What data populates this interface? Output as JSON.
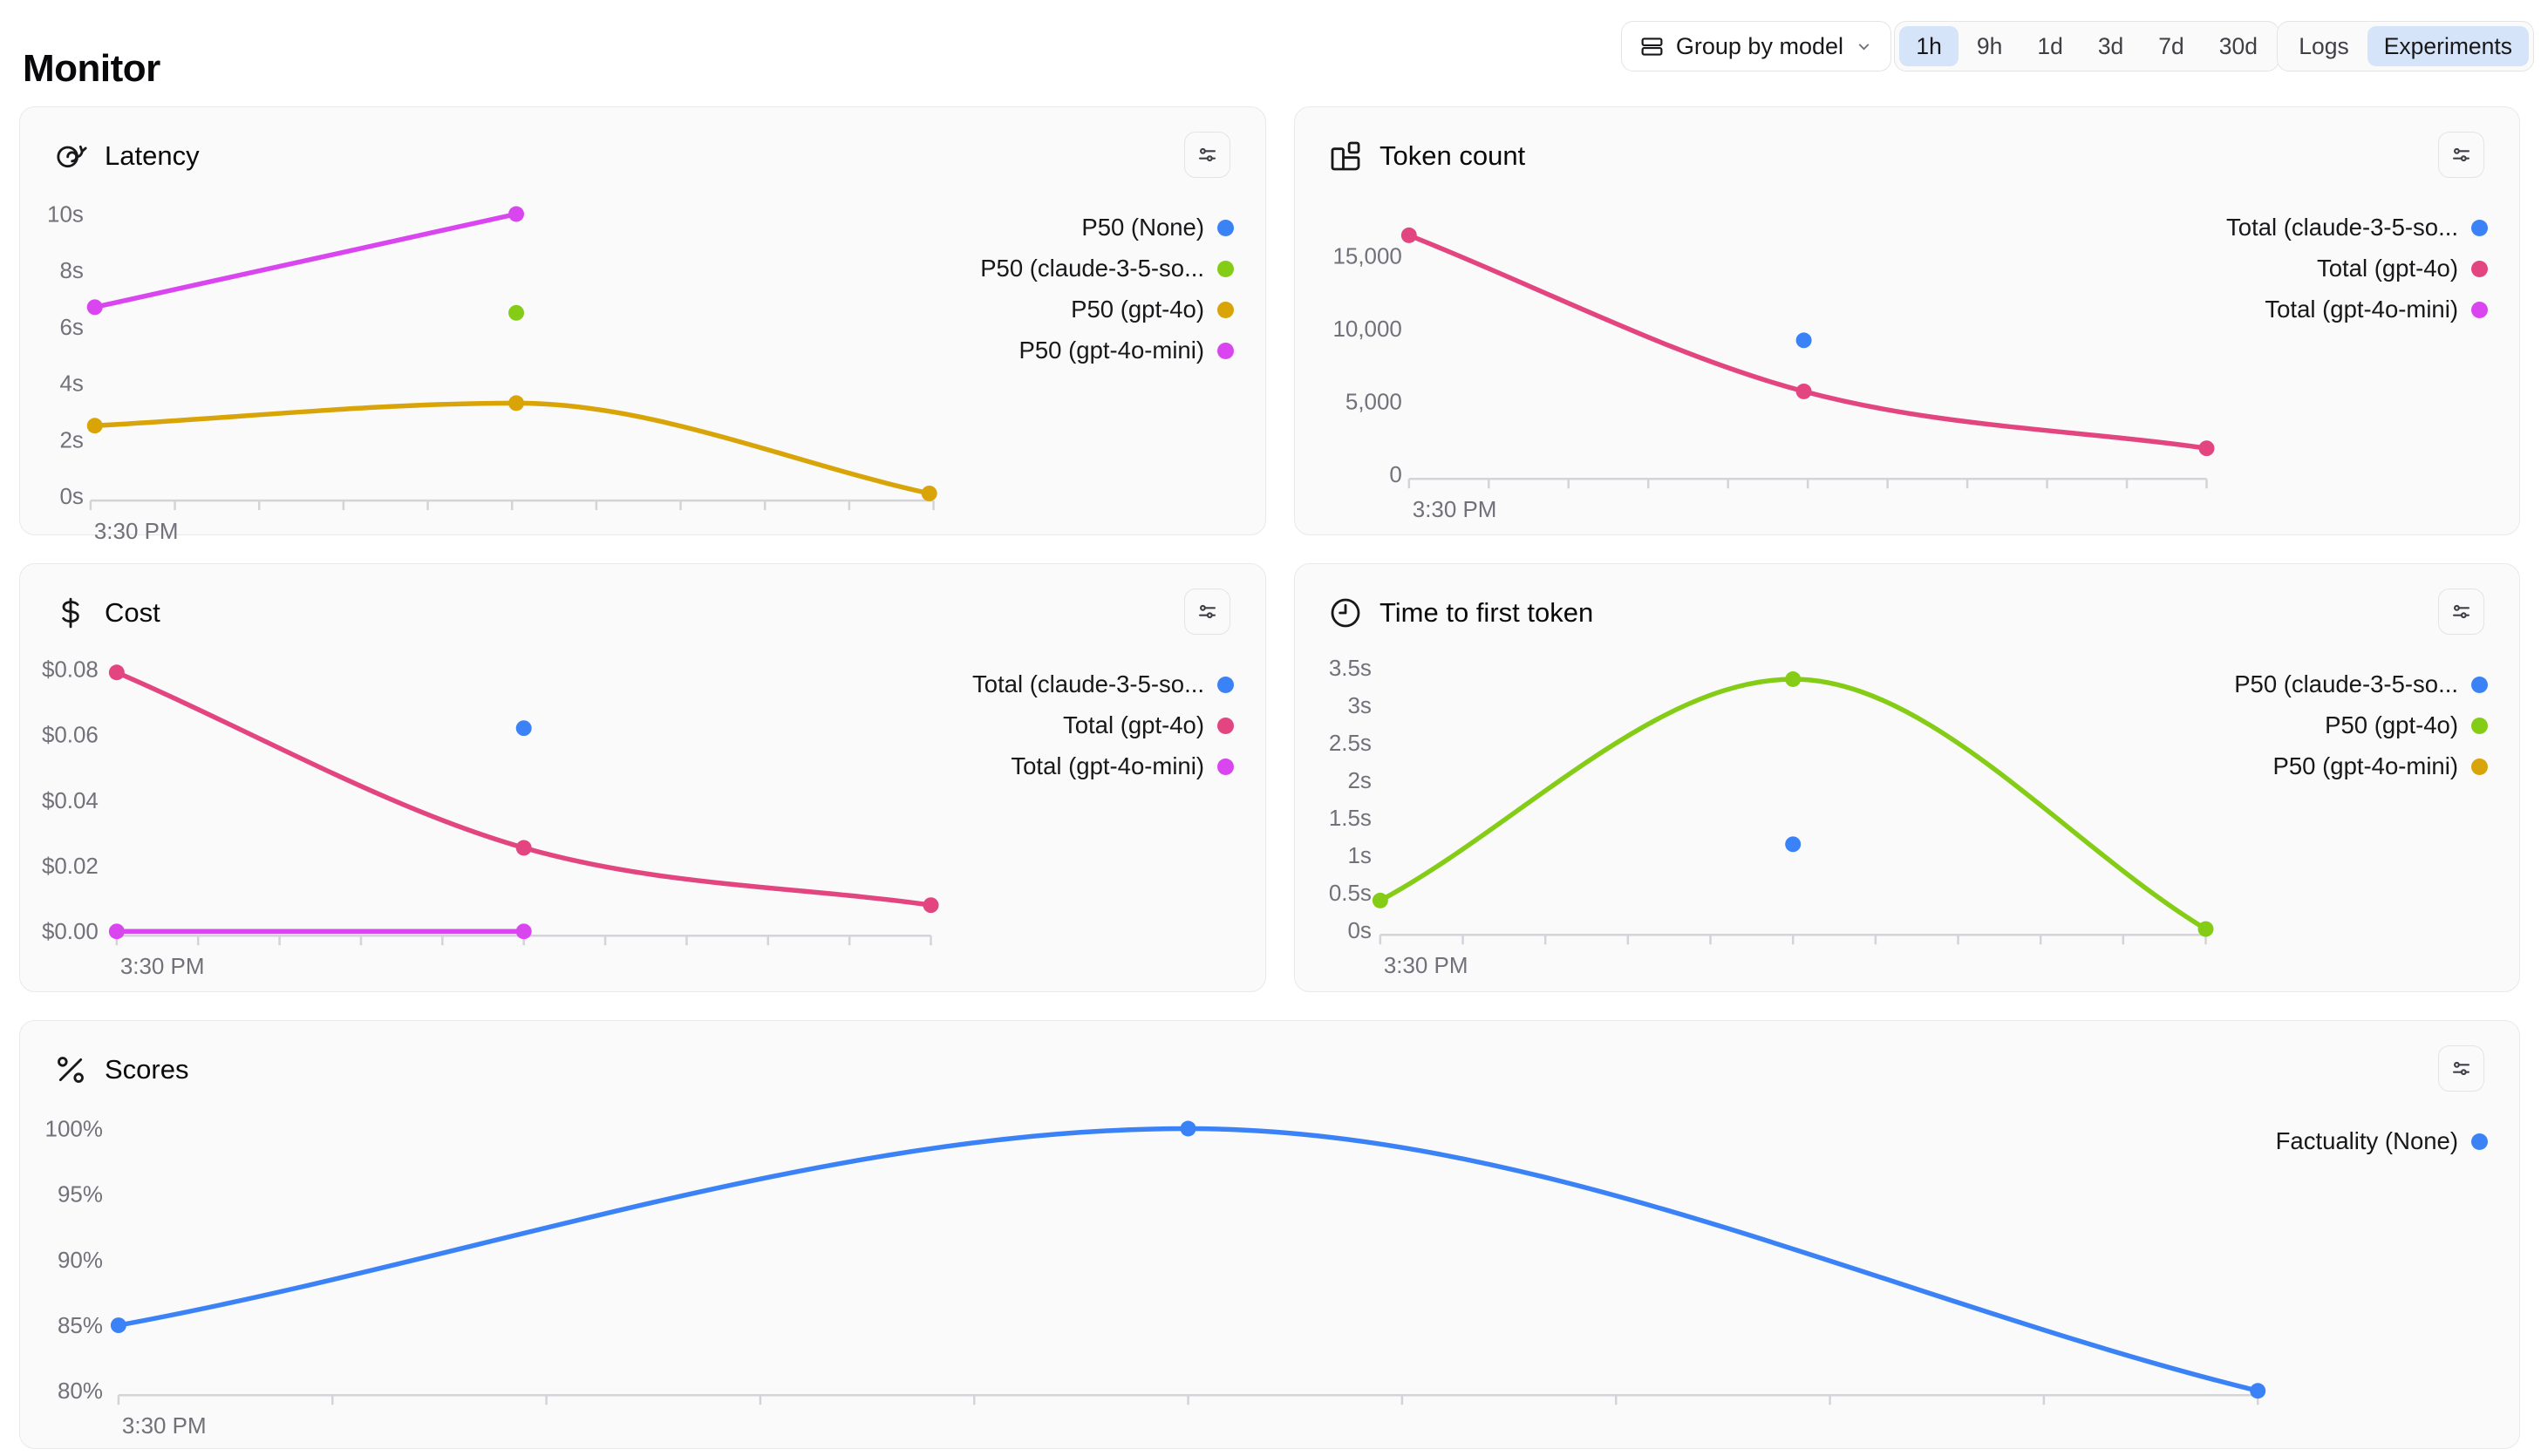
{
  "page": {
    "title": "Monitor"
  },
  "header": {
    "group_by_button": {
      "label": "Group by model",
      "icon": "rows-icon",
      "chevron": "chevron-down-icon"
    },
    "time_range_options": [
      "1h",
      "9h",
      "1d",
      "3d",
      "7d",
      "30d"
    ],
    "time_range_selected": "1h",
    "view_toggle_options": [
      "Logs",
      "Experiments"
    ],
    "view_toggle_selected": "Experiments",
    "selected_segment_bg": "#d6e4fa"
  },
  "colors": {
    "blue": "#3b82f6",
    "green": "#84cc16",
    "gold": "#d9a408",
    "magenta": "#d946ef",
    "pink": "#e2457f",
    "card_bg": "#fafafa",
    "card_border": "#e9e9ec",
    "axis": "#d4d4d8",
    "axis_label": "#71717a"
  },
  "chart_data": [
    {
      "id": "latency",
      "title": "Latency",
      "icon": "snail-icon",
      "type": "line",
      "settings_icon": "sliders-icon",
      "x_axis": {
        "start_label": "3:30 PM"
      },
      "y_axis": {
        "tick_labels": [
          "0s",
          "2s",
          "4s",
          "6s",
          "8s",
          "10s"
        ],
        "tick_values": [
          0,
          2,
          4,
          6,
          8,
          10
        ],
        "min": 0
      },
      "series": [
        {
          "name": "P50 (None)",
          "color": "#3b82f6",
          "points": []
        },
        {
          "name": "P50 (claude-3-5-so...",
          "color": "#84cc16",
          "points": [
            [
              0.505,
              6.5
            ]
          ]
        },
        {
          "name": "P50 (gpt-4o)",
          "color": "#d9a408",
          "points": [
            [
              0.005,
              2.5
            ],
            [
              0.505,
              3.3
            ],
            [
              0.995,
              0.1
            ]
          ]
        },
        {
          "name": "P50 (gpt-4o-mini)",
          "color": "#d946ef",
          "points": [
            [
              0.005,
              6.7
            ],
            [
              0.505,
              10
            ]
          ]
        }
      ]
    },
    {
      "id": "token_count",
      "title": "Token count",
      "icon": "blocks-icon",
      "type": "line",
      "settings_icon": "sliders-icon",
      "x_axis": {
        "start_label": "3:30 PM"
      },
      "y_axis": {
        "tick_labels": [
          "0",
          "5,000",
          "10,000",
          "15,000"
        ],
        "tick_values": [
          0,
          5000,
          10000,
          15000
        ],
        "min": 0
      },
      "series": [
        {
          "name": "Total (claude-3-5-so...",
          "color": "#3b82f6",
          "points": [
            [
              0.495,
              9200
            ]
          ]
        },
        {
          "name": "Total (gpt-4o)",
          "color": "#e2457f",
          "points": [
            [
              0,
              16400
            ],
            [
              0.495,
              5700
            ],
            [
              1,
              1800
            ]
          ]
        },
        {
          "name": "Total (gpt-4o-mini)",
          "color": "#d946ef",
          "points": []
        }
      ]
    },
    {
      "id": "cost",
      "title": "Cost",
      "icon": "dollar-icon",
      "type": "line",
      "settings_icon": "sliders-icon",
      "x_axis": {
        "start_label": "3:30 PM"
      },
      "y_axis": {
        "tick_labels": [
          "$0.00",
          "$0.02",
          "$0.04",
          "$0.06",
          "$0.08"
        ],
        "tick_values": [
          0,
          0.02,
          0.04,
          0.06,
          0.08
        ],
        "min": 0
      },
      "series": [
        {
          "name": "Total (claude-3-5-so...",
          "color": "#3b82f6",
          "points": [
            [
              0.5,
              0.062
            ]
          ]
        },
        {
          "name": "Total (gpt-4o)",
          "color": "#e2457f",
          "points": [
            [
              0,
              0.079
            ],
            [
              0.5,
              0.0255
            ],
            [
              1,
              0.008
            ]
          ]
        },
        {
          "name": "Total (gpt-4o-mini)",
          "color": "#d946ef",
          "points": [
            [
              0,
              0
            ],
            [
              0.5,
              0
            ]
          ]
        }
      ]
    },
    {
      "id": "time_to_first_token",
      "title": "Time to first token",
      "icon": "clock-icon",
      "type": "line",
      "settings_icon": "sliders-icon",
      "x_axis": {
        "start_label": "3:30 PM"
      },
      "y_axis": {
        "tick_labels": [
          "0s",
          "0.5s",
          "1s",
          "1.5s",
          "2s",
          "2.5s",
          "3s",
          "3.5s"
        ],
        "tick_values": [
          0,
          0.5,
          1,
          1.5,
          2,
          2.5,
          3,
          3.5
        ],
        "min": 0
      },
      "series": [
        {
          "name": "P50 (claude-3-5-so...",
          "color": "#3b82f6",
          "points": [
            [
              0.5,
              1.15
            ]
          ]
        },
        {
          "name": "P50 (gpt-4o)",
          "color": "#84cc16",
          "points": [
            [
              0,
              0.4
            ],
            [
              0.5,
              3.35
            ],
            [
              1,
              0.02
            ]
          ]
        },
        {
          "name": "P50 (gpt-4o-mini)",
          "color": "#d9a408",
          "points": []
        }
      ]
    },
    {
      "id": "scores",
      "title": "Scores",
      "icon": "percent-icon",
      "type": "line",
      "settings_icon": "sliders-icon",
      "x_axis": {
        "start_label": "3:30 PM"
      },
      "y_axis": {
        "tick_labels": [
          "80%",
          "85%",
          "90%",
          "95%",
          "100%"
        ],
        "tick_values": [
          80,
          85,
          90,
          95,
          100
        ],
        "min": 80
      },
      "series": [
        {
          "name": "Factuality (None)",
          "color": "#3b82f6",
          "points": [
            [
              0,
              85
            ],
            [
              0.5,
              100
            ],
            [
              1,
              80
            ]
          ]
        }
      ]
    }
  ]
}
